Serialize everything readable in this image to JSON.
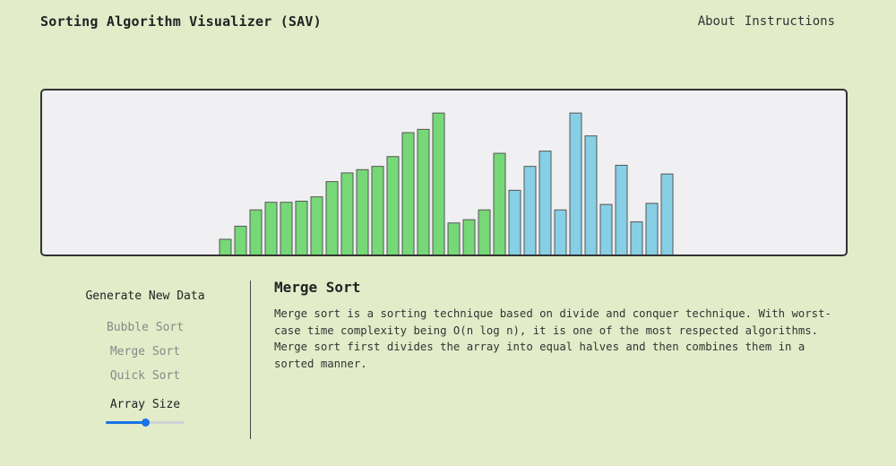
{
  "header": {
    "title": "Sorting Algorithm Visualizer (SAV)",
    "nav": [
      "About",
      "Instructions"
    ]
  },
  "colors": {
    "sorted_bar": "#77d877",
    "unsorted_bar": "#86cfe5",
    "bar_stroke": "#555555",
    "accent": "#1a73e8"
  },
  "chart_data": {
    "type": "bar",
    "values": [
      14,
      26,
      41,
      48,
      48,
      49,
      53,
      67,
      75,
      78,
      81,
      90,
      112,
      115,
      130,
      29,
      32,
      41,
      93,
      59,
      81,
      95,
      41,
      130,
      109,
      46,
      82,
      30,
      47,
      74
    ],
    "states": [
      "sorted",
      "sorted",
      "sorted",
      "sorted",
      "sorted",
      "sorted",
      "sorted",
      "sorted",
      "sorted",
      "sorted",
      "sorted",
      "sorted",
      "sorted",
      "sorted",
      "sorted",
      "sorted",
      "sorted",
      "sorted",
      "sorted",
      "unsorted",
      "unsorted",
      "unsorted",
      "unsorted",
      "unsorted",
      "unsorted",
      "unsorted",
      "unsorted",
      "unsorted",
      "unsorted",
      "unsorted"
    ],
    "ylim": [
      0,
      140
    ]
  },
  "controls": {
    "generate_label": "Generate New Data",
    "bubble_label": "Bubble Sort",
    "merge_label": "Merge Sort",
    "quick_label": "Quick Sort",
    "array_size_label": "Array Size",
    "array_size_fraction": 0.5
  },
  "info": {
    "heading": "Merge Sort",
    "description": "Merge sort is a sorting technique based on divide and conquer technique. With worst-case time complexity being O(n log n), it is one of the most respected algorithms. Merge sort first divides the array into equal halves and then combines them in a sorted manner."
  }
}
